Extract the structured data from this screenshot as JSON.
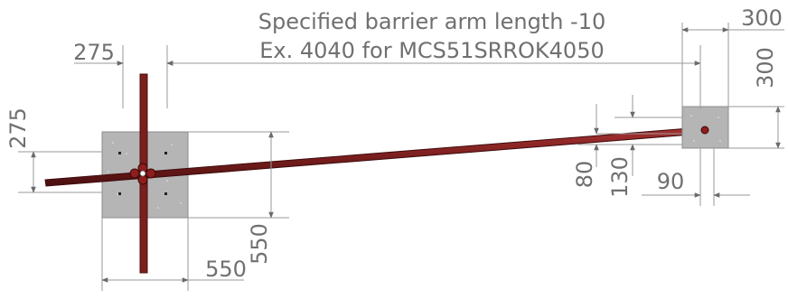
{
  "header": {
    "note_line1": "Specified barrier arm length -10",
    "note_line2": "Ex. 4040 for MCS51SRROK4050"
  },
  "dimensions": {
    "left_base_width": "275",
    "left_base_height": "275",
    "base_plate_width": "550",
    "base_plate_height": "550",
    "right_plate_width": "300",
    "right_plate_height": "300",
    "arm_height_80": "80",
    "arm_height_130": "130",
    "arm_offset_90": "90"
  },
  "colors": {
    "arm": "#7a1e1e",
    "concrete": "#b5b5b5",
    "dimension": "#707070"
  }
}
